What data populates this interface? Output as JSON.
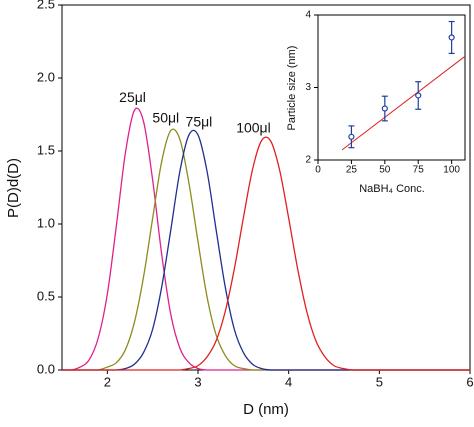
{
  "chart_data": [
    {
      "type": "line",
      "xlabel": "D (nm)",
      "ylabel": "P(D)d(D)",
      "x": [
        1.5,
        1.6,
        1.7,
        1.8,
        1.9,
        2.0,
        2.1,
        2.2,
        2.3,
        2.4,
        2.5,
        2.6,
        2.7,
        2.8,
        2.9,
        3.0,
        3.1,
        3.2,
        3.3,
        3.4,
        3.5,
        3.6,
        3.7,
        3.8,
        3.9,
        4.0,
        4.1,
        4.2,
        4.3,
        4.4,
        4.5,
        4.6,
        4.7,
        4.8,
        4.9,
        5.0,
        5.1,
        5.2,
        5.3,
        5.4,
        5.5,
        5.6,
        5.7,
        5.8,
        5.9,
        6.0
      ],
      "series": [
        {
          "name": "25μl",
          "color": "#e0208a",
          "values": [
            0,
            0,
            0.02,
            0.07,
            0.22,
            0.52,
            0.99,
            1.49,
            1.78,
            1.7,
            1.3,
            0.79,
            0.38,
            0.15,
            0.05,
            0.01,
            0,
            0,
            0,
            0,
            0,
            0,
            0,
            0,
            0,
            0,
            0,
            0,
            0,
            0,
            0,
            0,
            0,
            0,
            0,
            0,
            0,
            0,
            0,
            0,
            0,
            0,
            0,
            0,
            0,
            0
          ]
        },
        {
          "name": "50μl",
          "color": "#8c8c1e",
          "values": [
            0,
            0,
            0,
            0,
            0,
            0.02,
            0.05,
            0.14,
            0.33,
            0.64,
            1.04,
            1.43,
            1.64,
            1.58,
            1.28,
            0.88,
            0.5,
            0.24,
            0.1,
            0.03,
            0.01,
            0,
            0,
            0,
            0,
            0,
            0,
            0,
            0,
            0,
            0,
            0,
            0,
            0,
            0,
            0,
            0,
            0,
            0,
            0,
            0,
            0,
            0,
            0,
            0,
            0
          ]
        },
        {
          "name": "75μl",
          "color": "#1f2f8f",
          "values": [
            0,
            0,
            0,
            0,
            0,
            0,
            0,
            0.01,
            0.04,
            0.12,
            0.28,
            0.57,
            0.96,
            1.36,
            1.61,
            1.61,
            1.36,
            0.96,
            0.57,
            0.28,
            0.12,
            0.04,
            0.01,
            0,
            0,
            0,
            0,
            0,
            0,
            0,
            0,
            0,
            0,
            0,
            0,
            0,
            0,
            0,
            0,
            0,
            0,
            0,
            0,
            0,
            0,
            0
          ]
        },
        {
          "name": "100μl",
          "color": "#e02020",
          "values": [
            0,
            0,
            0,
            0,
            0,
            0,
            0,
            0,
            0,
            0,
            0,
            0,
            0,
            0,
            0.01,
            0.03,
            0.09,
            0.2,
            0.4,
            0.69,
            1.04,
            1.37,
            1.57,
            1.57,
            1.37,
            1.04,
            0.69,
            0.4,
            0.2,
            0.09,
            0.03,
            0.01,
            0,
            0,
            0,
            0,
            0,
            0,
            0,
            0,
            0,
            0,
            0,
            0,
            0,
            0
          ]
        }
      ],
      "xlim": [
        1.5,
        6
      ],
      "xticks": [
        2,
        3,
        4,
        5,
        6
      ],
      "ylim": [
        0,
        2.5
      ],
      "yticks": [
        {
          "value": 0,
          "label": "0.0"
        },
        0.5,
        {
          "value": 1,
          "label": "1.0"
        },
        1.5,
        {
          "value": 2,
          "label": "2.0"
        },
        2.5
      ]
    },
    {
      "type": "scatter",
      "xlabel": "NaBH₄ Conc.",
      "ylabel": "Particle size (nm)",
      "x": [
        25,
        50,
        75,
        100
      ],
      "series": [
        {
          "color": "#1f3fa0",
          "values": [
            2.32,
            2.71,
            2.89,
            3.69
          ],
          "errors": [
            0.15,
            0.17,
            0.19,
            0.22
          ]
        }
      ],
      "fit": {
        "color": "#e02020",
        "x": [
          18,
          110
        ],
        "values": [
          2.14,
          3.43
        ]
      },
      "xlim": [
        0,
        110
      ],
      "xticks": [
        0,
        25,
        50,
        75,
        100
      ],
      "ylim": [
        2,
        4
      ],
      "yticks": [
        2,
        3,
        4
      ]
    }
  ]
}
